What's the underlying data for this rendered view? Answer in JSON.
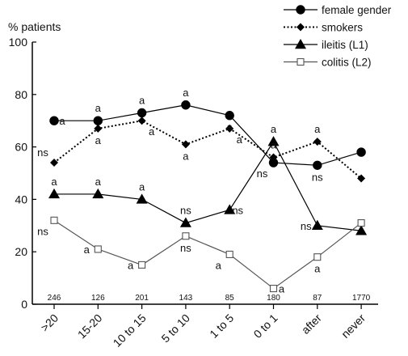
{
  "chart_data": {
    "type": "line",
    "ylabel": "% patients",
    "xlabel": "",
    "ylim": [
      0,
      100
    ],
    "yticks": [
      0,
      20,
      40,
      60,
      80,
      100
    ],
    "categories": [
      ">20",
      "15-20",
      "10 to 15",
      "5 to 10",
      "1 to 5",
      "0 to 1",
      "after",
      "never"
    ],
    "n_labels": [
      "246",
      "126",
      "201",
      "143",
      "85",
      "180",
      "87",
      "1770"
    ],
    "legend_position": "top-right",
    "series": [
      {
        "name": "female gender",
        "marker": "circle-filled",
        "line": "solid",
        "color": "#000000",
        "values": [
          70,
          70,
          73,
          76,
          72,
          54,
          53,
          58
        ],
        "annotations": [
          {
            "category": ">20",
            "text": "a",
            "position": "right"
          },
          {
            "category": "15-20",
            "text": "a",
            "position": "above"
          },
          {
            "category": "10 to 15",
            "text": "a",
            "position": "above"
          },
          {
            "category": "5 to 10",
            "text": "a",
            "position": "above"
          },
          {
            "category": "1 to 5",
            "text": "a",
            "position": "below"
          },
          {
            "category": "0 to 1",
            "text": "ns",
            "position": "below-left"
          },
          {
            "category": "after",
            "text": "ns",
            "position": "below"
          }
        ]
      },
      {
        "name": "smokers",
        "marker": "diamond-filled",
        "line": "dotted",
        "color": "#000000",
        "values": [
          54,
          67,
          70,
          61,
          67,
          56,
          62,
          48
        ],
        "annotations": [
          {
            "category": ">20",
            "text": "ns",
            "position": "above-left"
          },
          {
            "category": "15-20",
            "text": "a",
            "position": "below"
          },
          {
            "category": "10 to 15",
            "text": "a",
            "position": "below-right"
          },
          {
            "category": "5 to 10",
            "text": "a",
            "position": "below"
          },
          {
            "category": "1 to 5",
            "text": "a",
            "position": "below-right"
          },
          {
            "category": "0 to 1",
            "text": "a",
            "position": "above"
          },
          {
            "category": "after",
            "text": "a",
            "position": "above"
          }
        ]
      },
      {
        "name": "ileitis (L1)",
        "marker": "triangle-filled",
        "line": "solid",
        "color": "#000000",
        "values": [
          42,
          42,
          40,
          31,
          36,
          62,
          30,
          28
        ],
        "annotations": [
          {
            "category": ">20",
            "text": "a",
            "position": "above"
          },
          {
            "category": "15-20",
            "text": "a",
            "position": "above"
          },
          {
            "category": "10 to 15",
            "text": "a",
            "position": "above"
          },
          {
            "category": "5 to 10",
            "text": "ns",
            "position": "above"
          },
          {
            "category": "1 to 5",
            "text": "ns",
            "position": "right"
          },
          {
            "category": "0 to 1",
            "text": "a",
            "position": "above"
          },
          {
            "category": "after",
            "text": "ns",
            "position": "left"
          }
        ]
      },
      {
        "name": "colitis (L2)",
        "marker": "square-open",
        "line": "solid",
        "color": "#555555",
        "values": [
          32,
          21,
          15,
          26,
          19,
          6,
          18,
          31
        ],
        "annotations": [
          {
            "category": ">20",
            "text": "ns",
            "position": "below-left"
          },
          {
            "category": "15-20",
            "text": "a",
            "position": "left"
          },
          {
            "category": "10 to 15",
            "text": "a",
            "position": "left"
          },
          {
            "category": "5 to 10",
            "text": "ns",
            "position": "below"
          },
          {
            "category": "1 to 5",
            "text": "a",
            "position": "below-left"
          },
          {
            "category": "0 to 1",
            "text": "a",
            "position": "right"
          },
          {
            "category": "after",
            "text": "a",
            "position": "below"
          }
        ]
      }
    ]
  }
}
